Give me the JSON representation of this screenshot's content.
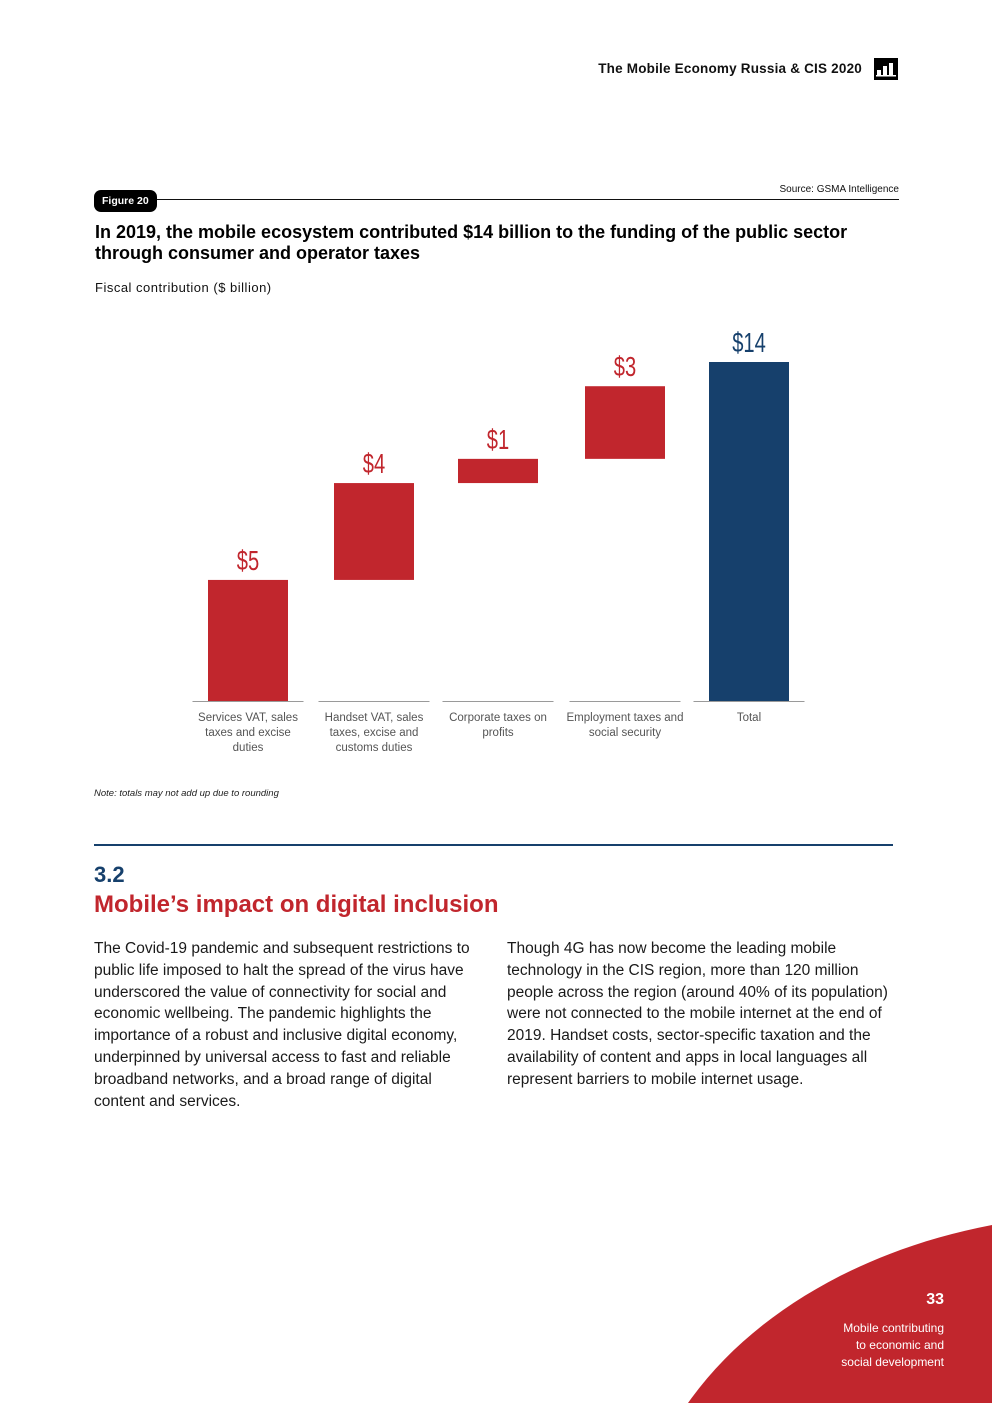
{
  "header": {
    "publication_title": "The Mobile Economy Russia & CIS 2020",
    "icon": "gsma-chart-icon"
  },
  "figure": {
    "badge": "Figure 20",
    "source": "Source: GSMA Intelligence",
    "title": "In 2019, the mobile ecosystem contributed $14 billion to the funding of the public sector through consumer and operator taxes",
    "note": "Note: totals may not add up due to rounding"
  },
  "chart_data": {
    "type": "bar",
    "subtype": "waterfall",
    "ylabel": "Fiscal contribution ($ billion)",
    "categories": [
      "Services VAT, sales taxes and excise duties",
      "Handset VAT, sales taxes, excise and customs duties",
      "Corporate taxes on profits",
      "Employment taxes and social security",
      "Total"
    ],
    "values": [
      5,
      4,
      1,
      3,
      14
    ],
    "data_labels": [
      "$5",
      "$4",
      "$1",
      "$3",
      "$14"
    ],
    "colors": {
      "increment": "#c1262d",
      "total": "#16406c",
      "axis": "#9a9a9a",
      "tick_label": "#555555"
    },
    "ylim": [
      0,
      14
    ],
    "grid": false,
    "legend": "none"
  },
  "section": {
    "number": "3.2",
    "title": "Mobile’s impact on digital inclusion",
    "paragraph_left": "The Covid-19 pandemic and subsequent restrictions to public life imposed to halt the spread of the virus have underscored the value of connectivity for social and economic wellbeing. The pandemic highlights the importance of a robust and inclusive digital economy, underpinned by universal access to fast and reliable broadband networks, and a broad range of digital content and services.",
    "paragraph_right": "Though 4G has now become the leading mobile technology in the CIS region, more than 120 million people across the region (around 40% of its population) were not connected to the mobile internet at the end of 2019. Handset costs, sector-specific taxation and the availability of content and apps in local languages all represent barriers to mobile internet usage."
  },
  "footer": {
    "page_number": "33",
    "section_lines": [
      "Mobile contributing",
      "to economic and",
      "social development"
    ],
    "accent_color": "#c1262d"
  }
}
